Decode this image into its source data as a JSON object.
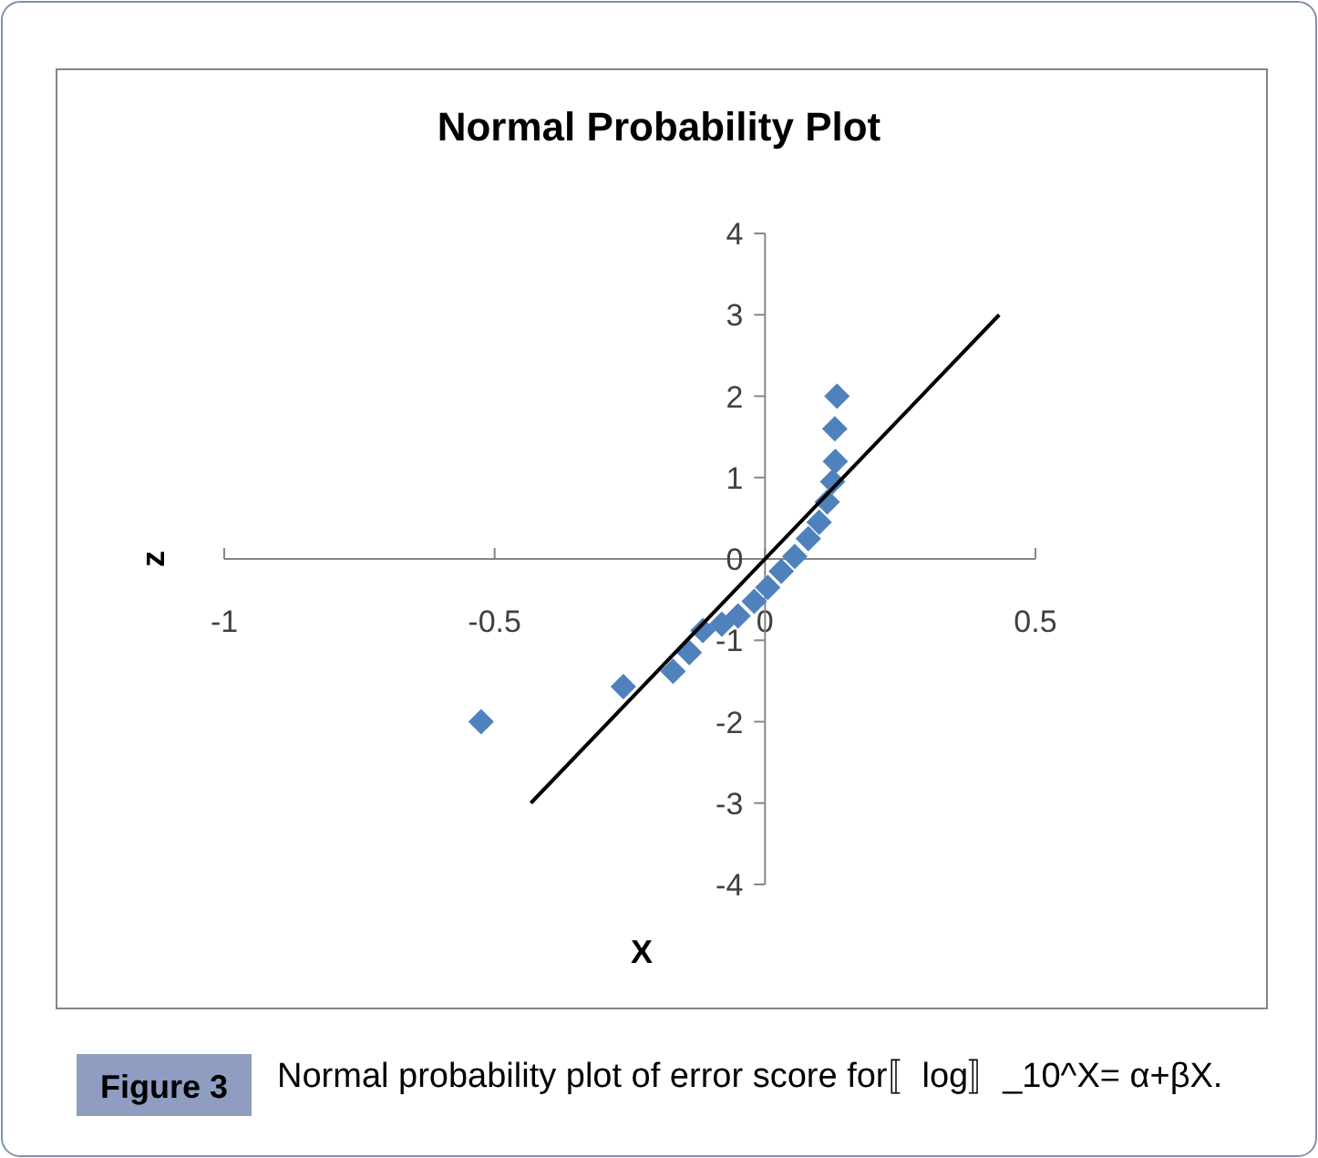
{
  "chart_data": {
    "type": "scatter",
    "title": "Normal Probability Plot",
    "xlabel": "X",
    "ylabel": "z",
    "xlim": [
      -1,
      0.5
    ],
    "xticks": [
      -1,
      -0.5,
      0,
      0.5
    ],
    "ylim": [
      -4,
      4
    ],
    "yticks": [
      -4,
      -3,
      -2,
      -1,
      0,
      1,
      2,
      3,
      4
    ],
    "marker": "diamond",
    "grid": false,
    "series": [
      {
        "type": "scatter",
        "color": "#4f81bd",
        "x": [
          -0.525,
          -0.262,
          -0.17,
          -0.14,
          -0.115,
          -0.08,
          -0.05,
          -0.02,
          0.005,
          0.03,
          0.055,
          0.08,
          0.1,
          0.115,
          0.125,
          0.13,
          0.129,
          0.133
        ],
        "values": [
          -2.0,
          -1.57,
          -1.38,
          -1.15,
          -0.88,
          -0.8,
          -0.7,
          -0.52,
          -0.35,
          -0.15,
          0.03,
          0.25,
          0.45,
          0.7,
          0.95,
          1.2,
          1.6,
          2.0
        ]
      },
      {
        "type": "line",
        "color": "#000000",
        "marker": "none",
        "x": [
          -0.433,
          0.433
        ],
        "values": [
          -3,
          3
        ]
      }
    ],
    "annotations": [
      "Figure 3",
      "Normal probability plot of error score for〚log〛_10^X= α+βX."
    ]
  }
}
